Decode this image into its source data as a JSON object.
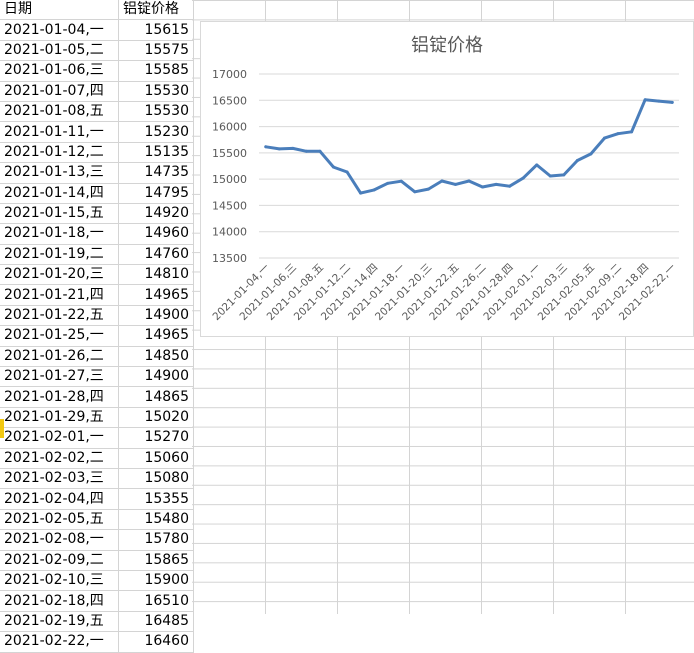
{
  "table": {
    "headers": [
      "日期",
      "铝锭价格"
    ],
    "rows": [
      [
        "2021-01-04,一",
        "15615"
      ],
      [
        "2021-01-05,二",
        "15575"
      ],
      [
        "2021-01-06,三",
        "15585"
      ],
      [
        "2021-01-07,四",
        "15530"
      ],
      [
        "2021-01-08,五",
        "15530"
      ],
      [
        "2021-01-11,一",
        "15230"
      ],
      [
        "2021-01-12,二",
        "15135"
      ],
      [
        "2021-01-13,三",
        "14735"
      ],
      [
        "2021-01-14,四",
        "14795"
      ],
      [
        "2021-01-15,五",
        "14920"
      ],
      [
        "2021-01-18,一",
        "14960"
      ],
      [
        "2021-01-19,二",
        "14760"
      ],
      [
        "2021-01-20,三",
        "14810"
      ],
      [
        "2021-01-21,四",
        "14965"
      ],
      [
        "2021-01-22,五",
        "14900"
      ],
      [
        "2021-01-25,一",
        "14965"
      ],
      [
        "2021-01-26,二",
        "14850"
      ],
      [
        "2021-01-27,三",
        "14900"
      ],
      [
        "2021-01-28,四",
        "14865"
      ],
      [
        "2021-01-29,五",
        "15020"
      ],
      [
        "2021-02-01,一",
        "15270"
      ],
      [
        "2021-02-02,二",
        "15060"
      ],
      [
        "2021-02-03,三",
        "15080"
      ],
      [
        "2021-02-04,四",
        "15355"
      ],
      [
        "2021-02-05,五",
        "15480"
      ],
      [
        "2021-02-08,一",
        "15780"
      ],
      [
        "2021-02-09,二",
        "15865"
      ],
      [
        "2021-02-10,三",
        "15900"
      ],
      [
        "2021-02-18,四",
        "16510"
      ],
      [
        "2021-02-19,五",
        "16485"
      ],
      [
        "2021-02-22,一",
        "16460"
      ]
    ]
  },
  "chart_data": {
    "type": "line",
    "title": "铝锭价格",
    "xlabel": "",
    "ylabel": "",
    "ylim": [
      13500,
      17000
    ],
    "yticks": [
      13500,
      14000,
      14500,
      15000,
      15500,
      16000,
      16500,
      17000
    ],
    "grid": true,
    "legend": "none",
    "line_color": "#4a7ebb",
    "categories": [
      "2021-01-04,一",
      "2021-01-05,二",
      "2021-01-06,三",
      "2021-01-07,四",
      "2021-01-08,五",
      "2021-01-11,一",
      "2021-01-12,二",
      "2021-01-13,三",
      "2021-01-14,四",
      "2021-01-15,五",
      "2021-01-18,一",
      "2021-01-19,二",
      "2021-01-20,三",
      "2021-01-21,四",
      "2021-01-22,五",
      "2021-01-25,一",
      "2021-01-26,二",
      "2021-01-27,三",
      "2021-01-28,四",
      "2021-01-29,五",
      "2021-02-01,一",
      "2021-02-02,二",
      "2021-02-03,三",
      "2021-02-04,四",
      "2021-02-05,五",
      "2021-02-08,一",
      "2021-02-09,二",
      "2021-02-10,三",
      "2021-02-18,四",
      "2021-02-19,五",
      "2021-02-22,一"
    ],
    "shown_tick_labels": [
      "2021-01-04,一",
      "2021-01-06,三",
      "2021-01-08,五",
      "2021-01-12,二",
      "2021-01-14,四",
      "2021-01-18,一",
      "2021-01-20,三",
      "2021-01-22,五",
      "2021-01-26,二",
      "2021-01-28,四",
      "2021-02-01,一",
      "2021-02-03,三",
      "2021-02-05,五",
      "2021-02-09,二",
      "2021-02-18,四",
      "2021-02-22,一"
    ],
    "values": [
      15615,
      15575,
      15585,
      15530,
      15530,
      15230,
      15135,
      14735,
      14795,
      14920,
      14960,
      14760,
      14810,
      14965,
      14900,
      14965,
      14850,
      14900,
      14865,
      15020,
      15270,
      15060,
      15080,
      15355,
      15480,
      15780,
      15865,
      15900,
      16510,
      16485,
      16460
    ]
  }
}
